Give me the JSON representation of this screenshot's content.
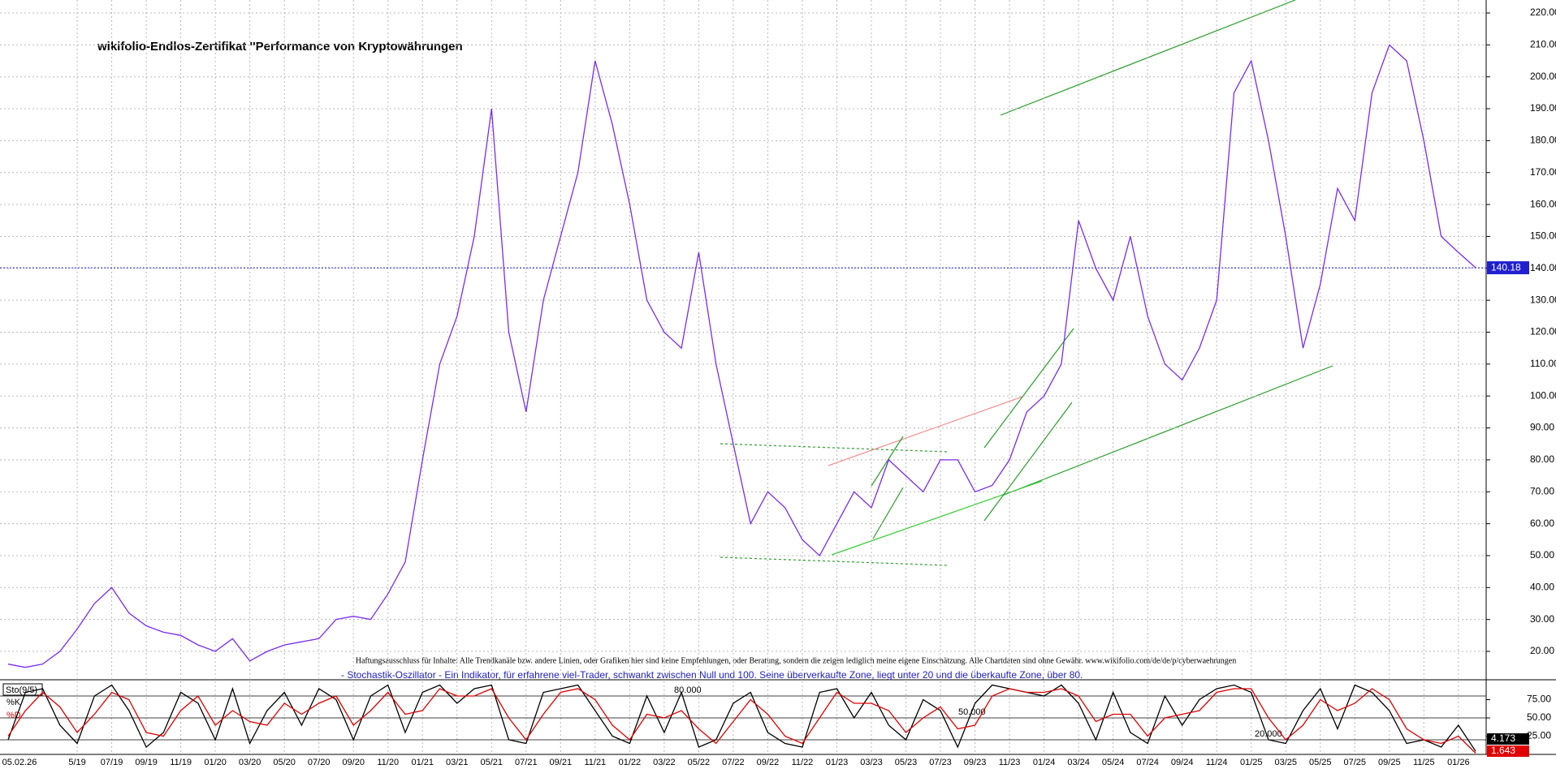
{
  "chart_data": [
    {
      "type": "line",
      "title": "wikifolio-Endlos-Zertifikat ''Performance von Kryptowährungen",
      "date_label": "05.02.26",
      "disclaimer": "Haftungsausschluss für Inhalte: Alle Trendkanäle bzw. andere Linien, oder Grafiken hier sind keine Empfehlungen, oder Beratung, sondern die zeigen lediglich meine eigene Einschätzung. Alle Chartdaten sind ohne Gewähr. www.wikifolio.com/de/de/p/cyberwaehrungen",
      "categories": [
        null,
        null,
        null,
        null,
        "5/19",
        null,
        "07/19",
        null,
        "09/19",
        null,
        "11/19",
        null,
        "01/20",
        null,
        "03/20",
        null,
        "05/20",
        null,
        "07/20",
        null,
        "09/20",
        null,
        "11/20",
        null,
        "01/21",
        null,
        "03/21",
        null,
        "05/21",
        null,
        "07/21",
        null,
        "09/21",
        null,
        "11/21",
        null,
        "01/22",
        null,
        "03/22",
        null,
        "05/22",
        null,
        "07/22",
        null,
        "09/22",
        null,
        "11/22",
        null,
        "01/23",
        null,
        "03/23",
        null,
        "05/23",
        null,
        "07/23",
        null,
        "09/23",
        null,
        "11/23",
        null,
        "01/24",
        null,
        "03/24",
        null,
        "05/24",
        null,
        "07/24",
        null,
        "09/24",
        null,
        "11/24",
        null,
        "01/25",
        null,
        "03/25",
        null,
        "05/25",
        null,
        "07/25",
        null,
        "09/25",
        null,
        "11/25",
        null,
        "01/26",
        null
      ],
      "series": [
        {
          "name": "wikifolio",
          "color": "#7a2cf0",
          "values": [
            16,
            15,
            16,
            20,
            27,
            35,
            40,
            32,
            28,
            26,
            25,
            22,
            20,
            24,
            17,
            20,
            22,
            23,
            24,
            30,
            31,
            30,
            38,
            48,
            80,
            110,
            125,
            150,
            190,
            120,
            95,
            130,
            150,
            170,
            205,
            185,
            160,
            130,
            120,
            115,
            145,
            110,
            85,
            60,
            70,
            65,
            55,
            50,
            60,
            70,
            65,
            80,
            75,
            70,
            80,
            80,
            70,
            72,
            80,
            95,
            100,
            110,
            155,
            140,
            130,
            150,
            125,
            110,
            105,
            115,
            130,
            195,
            205,
            180,
            150,
            115,
            135,
            165,
            155,
            195,
            210,
            205,
            180,
            150,
            145,
            140.18
          ]
        }
      ],
      "current_value": 140.18,
      "ylim": [
        20,
        220
      ],
      "yticks": [
        {
          "value": 20,
          "label": "20.00"
        },
        {
          "value": 30,
          "label": "30.00"
        },
        {
          "value": 40,
          "label": "40.00"
        },
        {
          "value": 50,
          "label": "50.00"
        },
        {
          "value": 60,
          "label": "60.00"
        },
        {
          "value": 70,
          "label": "70.00"
        },
        {
          "value": 80,
          "label": "80.00"
        },
        {
          "value": 90,
          "label": "90.00"
        },
        {
          "value": 100,
          "label": "100.00"
        },
        {
          "value": 110,
          "label": "110.00"
        },
        {
          "value": 120,
          "label": "120.00"
        },
        {
          "value": 130,
          "label": "130.00"
        },
        {
          "value": 140,
          "label": "140.00"
        },
        {
          "value": 150,
          "label": "150.00"
        },
        {
          "value": 160,
          "label": "160.00"
        },
        {
          "value": 170,
          "label": "170.00"
        },
        {
          "value": 180,
          "label": "180.00"
        },
        {
          "value": 190,
          "label": "190.00"
        },
        {
          "value": 200,
          "label": "200.00"
        },
        {
          "value": 210,
          "label": "210.00"
        },
        {
          "value": 220,
          "label": "220.00"
        }
      ],
      "grid": true
    },
    {
      "type": "line",
      "title": "- Stochastik-Oszillator - Ein Indikator, für erfahrene viel-Trader, schwankt zwischen Null und 100. Seine überverkaufte Zone, liegt unter 20 und die überkaufte Zone, über 80.",
      "indicator": "Sto(9/5)",
      "series": [
        {
          "name": "%K",
          "color": "#000000",
          "current": 4.173,
          "values": [
            20,
            85,
            90,
            40,
            15,
            80,
            95,
            60,
            10,
            30,
            85,
            70,
            20,
            90,
            15,
            60,
            85,
            40,
            90,
            75,
            20,
            80,
            95,
            30,
            85,
            95,
            70,
            90,
            95,
            20,
            15,
            85,
            90,
            95,
            60,
            25,
            15,
            80,
            30,
            85,
            10,
            20,
            70,
            85,
            30,
            15,
            10,
            85,
            90,
            50,
            85,
            40,
            20,
            75,
            60,
            10,
            70,
            95,
            90,
            85,
            80,
            95,
            70,
            20,
            85,
            30,
            15,
            80,
            40,
            75,
            90,
            95,
            85,
            20,
            15,
            60,
            90,
            35,
            95,
            85,
            60,
            15,
            20,
            10,
            40,
            4.173
          ]
        },
        {
          "name": "%D",
          "color": "#e00000",
          "current": 1.643,
          "values": [
            25,
            60,
            85,
            65,
            30,
            55,
            85,
            75,
            30,
            25,
            60,
            80,
            40,
            60,
            45,
            40,
            70,
            55,
            70,
            80,
            40,
            60,
            85,
            55,
            60,
            90,
            80,
            80,
            90,
            50,
            20,
            55,
            85,
            90,
            75,
            40,
            20,
            55,
            50,
            60,
            35,
            15,
            45,
            75,
            55,
            25,
            15,
            50,
            85,
            70,
            70,
            60,
            30,
            50,
            65,
            35,
            40,
            80,
            90,
            85,
            85,
            90,
            80,
            45,
            55,
            55,
            25,
            50,
            55,
            60,
            85,
            90,
            90,
            50,
            20,
            40,
            75,
            60,
            70,
            90,
            75,
            35,
            20,
            15,
            25,
            1.643
          ]
        }
      ],
      "levels": [
        {
          "value": 80,
          "label": "80.000"
        },
        {
          "value": 50,
          "label": "50.000"
        },
        {
          "value": 20,
          "label": "20.000"
        }
      ],
      "ylim": [
        0,
        100
      ],
      "yticks": [
        {
          "value": 25,
          "label": "25.00"
        },
        {
          "value": 50,
          "label": "50.00"
        },
        {
          "value": 75,
          "label": "75.00"
        }
      ]
    }
  ]
}
